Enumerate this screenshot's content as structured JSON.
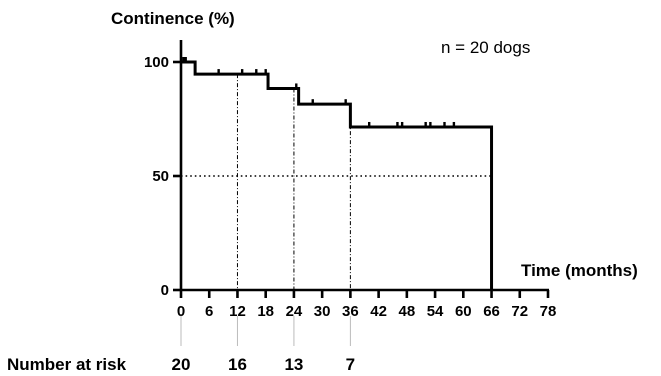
{
  "chart_data": {
    "type": "line",
    "title": "",
    "ylabel": "Continence (%)",
    "xlabel": "Time (months)",
    "annotation": "n = 20 dogs",
    "xlim": [
      0,
      78
    ],
    "ylim": [
      0,
      100
    ],
    "x_ticks": [
      0,
      6,
      12,
      18,
      24,
      30,
      36,
      42,
      48,
      54,
      60,
      66,
      72,
      78
    ],
    "x_tick_labels": [
      "0",
      "6",
      "12",
      "18",
      "24",
      "30",
      "36",
      "42",
      "48",
      "54",
      "60",
      "66",
      "72",
      "78"
    ],
    "y_ticks": [
      0,
      50,
      100
    ],
    "y_tick_labels": [
      "0",
      "50",
      "100"
    ],
    "series": [
      {
        "style": "step",
        "color": "#000000",
        "steps": [
          {
            "x": 0,
            "y": 100
          },
          {
            "x": 3,
            "y": 94.7
          },
          {
            "x": 18.5,
            "y": 88.4
          },
          {
            "x": 25,
            "y": 81.5
          },
          {
            "x": 36,
            "y": 71.5
          },
          {
            "x": 66,
            "y": 71.5
          },
          {
            "x": 66,
            "y": 0
          }
        ],
        "censor_marks": [
          {
            "x": 0.5,
            "y": 100
          },
          {
            "x": 1,
            "y": 100
          },
          {
            "x": 8,
            "y": 94.7
          },
          {
            "x": 13,
            "y": 94.7
          },
          {
            "x": 16,
            "y": 94.7
          },
          {
            "x": 18,
            "y": 94.7
          },
          {
            "x": 24.5,
            "y": 88.4
          },
          {
            "x": 28,
            "y": 81.5
          },
          {
            "x": 35,
            "y": 81.5
          },
          {
            "x": 40,
            "y": 71.5
          },
          {
            "x": 46,
            "y": 71.5
          },
          {
            "x": 47,
            "y": 71.5
          },
          {
            "x": 52,
            "y": 71.5
          },
          {
            "x": 53,
            "y": 71.5
          },
          {
            "x": 56,
            "y": 71.5
          },
          {
            "x": 58,
            "y": 71.5
          }
        ]
      }
    ],
    "reference_lines": {
      "horizontal_y": 50,
      "vertical_x": [
        12,
        24,
        36
      ]
    },
    "number_at_risk": {
      "label": "Number at risk",
      "entries": [
        {
          "x": 0,
          "value": "20"
        },
        {
          "x": 12,
          "value": "16"
        },
        {
          "x": 24,
          "value": "13"
        },
        {
          "x": 36,
          "value": "7"
        }
      ]
    },
    "grid": false,
    "legend": "none"
  }
}
